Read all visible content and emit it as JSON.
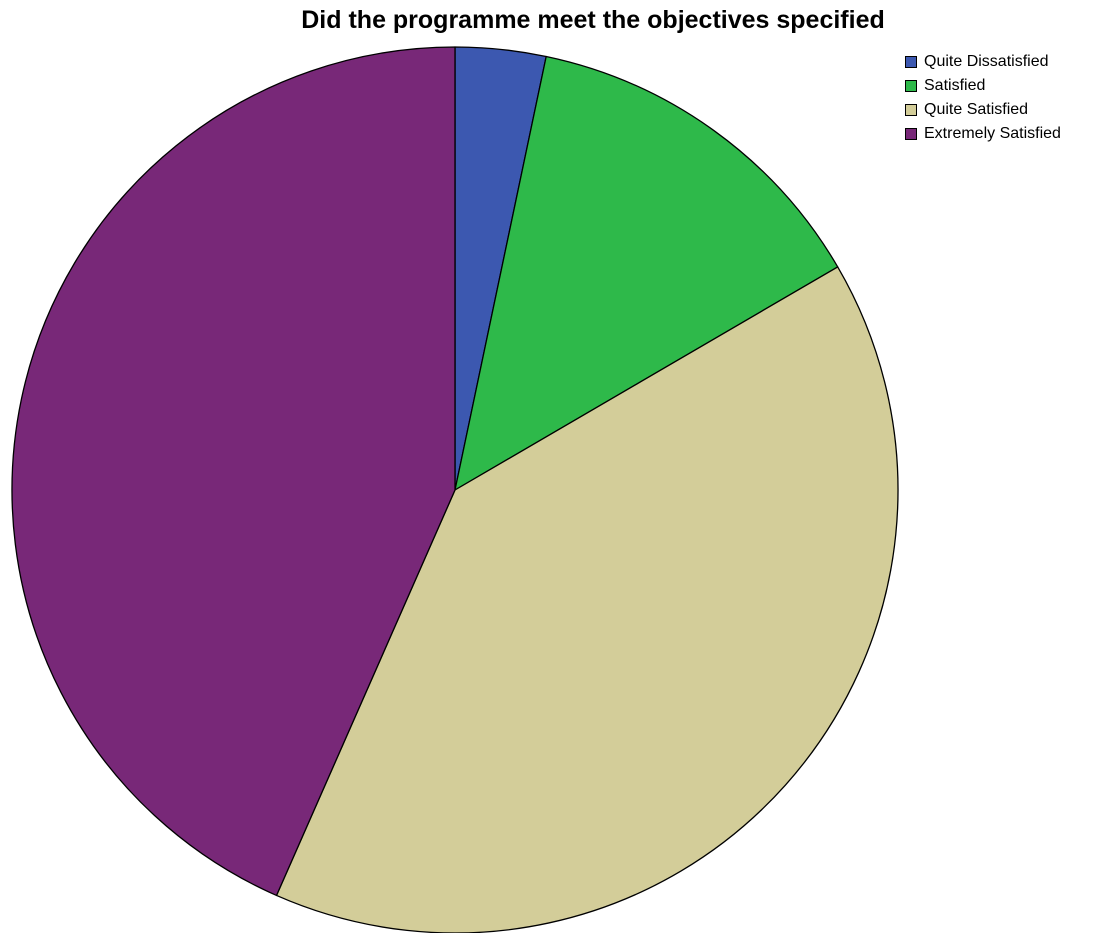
{
  "chart_data": {
    "type": "pie",
    "title": "Did the programme meet the objectives specified",
    "categories": [
      "Quite Dissatisfied",
      "Satisfied",
      "Quite Satisfied",
      "Extremely Satisfied"
    ],
    "values": [
      3.3,
      13.3,
      40.0,
      43.4
    ],
    "colors": [
      "#3c58b0",
      "#2eb94a",
      "#d3cd99",
      "#782878"
    ],
    "start_angle_degrees": 0,
    "direction": "clockwise",
    "legend": "top-right"
  }
}
